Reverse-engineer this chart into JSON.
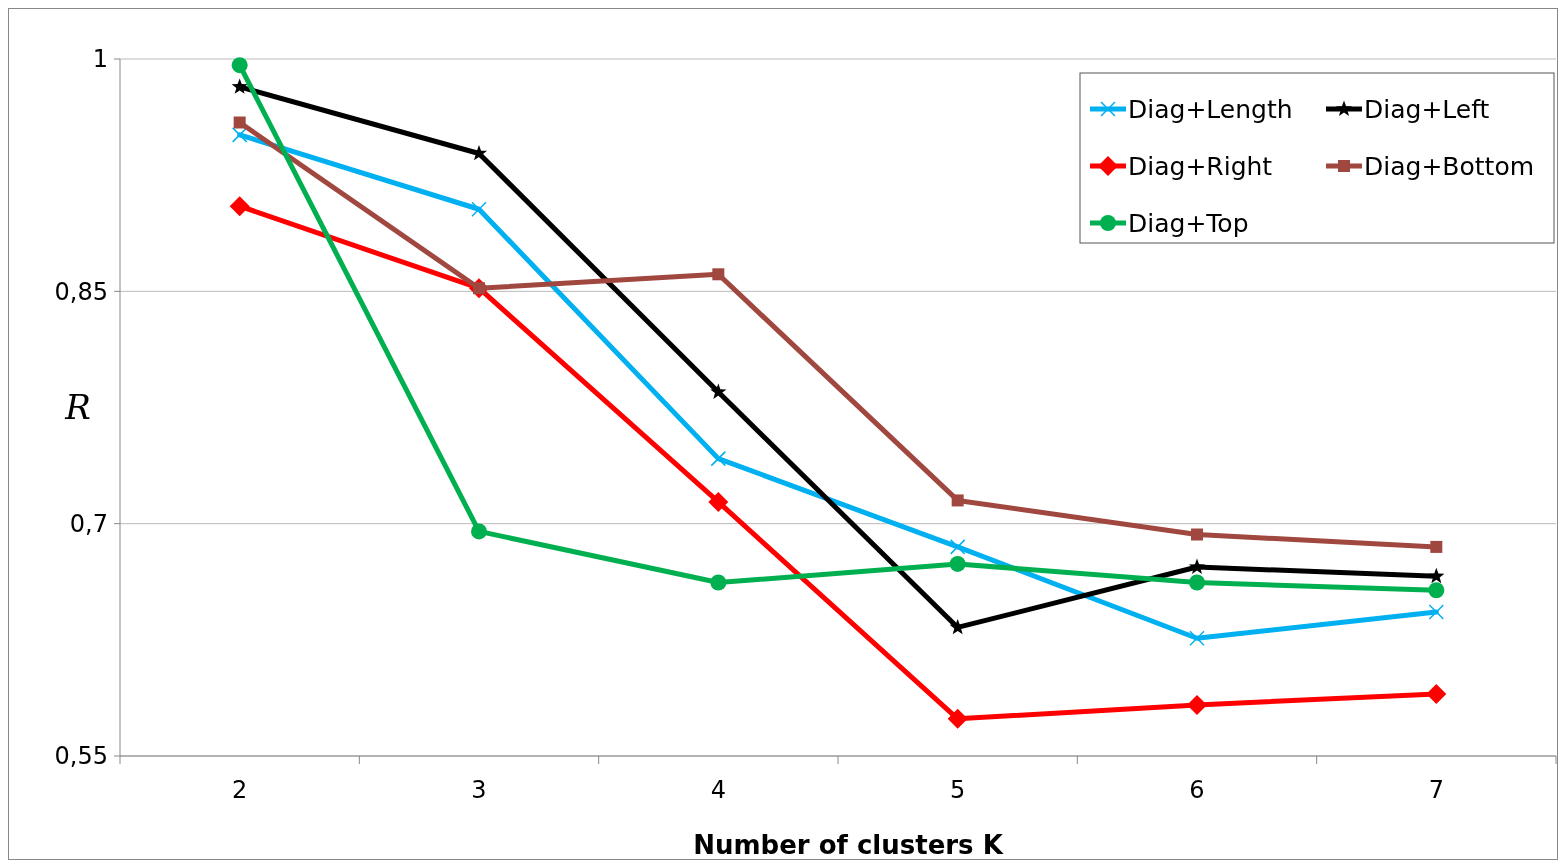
{
  "chart_data": {
    "type": "line",
    "xlabel": "Number of clusters  K",
    "ylabel": "R",
    "categories": [
      "2",
      "3",
      "4",
      "5",
      "6",
      "7"
    ],
    "ylim": [
      0.55,
      1
    ],
    "yticks": [
      {
        "value": 0.55,
        "label": "0,55"
      },
      {
        "value": 0.7,
        "label": "0,7"
      },
      {
        "value": 0.85,
        "label": "0,85"
      },
      1
    ],
    "grid": "y",
    "legend": "top right",
    "series": [
      {
        "name": "Diag+Length",
        "color": "#00b0f0",
        "marker": "cross",
        "values": [
          0.951,
          0.903,
          0.742,
          0.685,
          0.626,
          0.643
        ]
      },
      {
        "name": "Diag+Left",
        "color": "#000000",
        "marker": "star",
        "values": [
          0.982,
          0.939,
          0.785,
          0.633,
          0.672,
          0.666
        ]
      },
      {
        "name": "Diag+Right",
        "color": "#ff0000",
        "marker": "diamond",
        "values": [
          0.905,
          0.852,
          0.714,
          0.574,
          0.583,
          0.59
        ]
      },
      {
        "name": "Diag+Bottom",
        "color": "#a0473f",
        "marker": "square",
        "values": [
          0.959,
          0.852,
          0.861,
          0.715,
          0.693,
          0.685
        ]
      },
      {
        "name": "Diag+Top",
        "color": "#00b050",
        "marker": "circle",
        "values": [
          0.996,
          0.695,
          0.662,
          0.674,
          0.662,
          0.657
        ]
      }
    ]
  }
}
